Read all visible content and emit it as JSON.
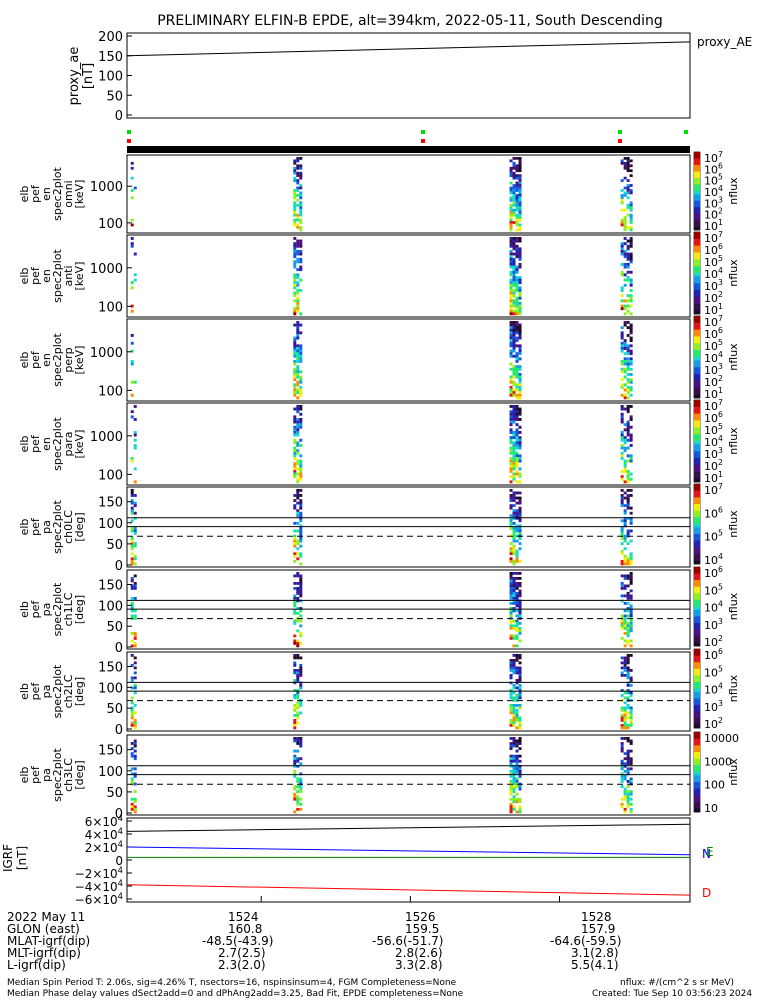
{
  "title": "PRELIMINARY ELFIN-B EPDE, alt=394km, 2022-05-11, South Descending",
  "ae_panel": {
    "ylabel": "proxy_ae\n[nT]",
    "ticks": [
      "200",
      "150",
      "100",
      "50",
      "0"
    ],
    "legend": "proxy_AE"
  },
  "energy_panels": [
    {
      "ylabel": [
        "elb",
        "pef",
        "en",
        "spec2plot",
        "omni",
        "[keV]"
      ],
      "ticks": [
        "1000",
        "100"
      ]
    },
    {
      "ylabel": [
        "elb",
        "pef",
        "en",
        "spec2plot",
        "anti",
        "[keV]"
      ],
      "ticks": [
        "1000",
        "100"
      ]
    },
    {
      "ylabel": [
        "elb",
        "pef",
        "en",
        "spec2plot",
        "perp",
        "[keV]"
      ],
      "ticks": [
        "1000",
        "100"
      ]
    },
    {
      "ylabel": [
        "elb",
        "pef",
        "en",
        "spec2plot",
        "para",
        "[keV]"
      ],
      "ticks": [
        "1000",
        "100"
      ]
    }
  ],
  "pa_panels": [
    {
      "ylabel": [
        "elb",
        "pef",
        "pa",
        "spec2plot",
        "ch0LC",
        "[deg]"
      ],
      "ticks": [
        "150",
        "100",
        "50",
        "0"
      ]
    },
    {
      "ylabel": [
        "elb",
        "pef",
        "pa",
        "spec2plot",
        "ch1LC",
        "[deg]"
      ],
      "ticks": [
        "150",
        "100",
        "50",
        "0"
      ]
    },
    {
      "ylabel": [
        "elb",
        "pef",
        "pa",
        "spec2plot",
        "ch2LC",
        "[deg]"
      ],
      "ticks": [
        "150",
        "100",
        "50",
        "0"
      ]
    },
    {
      "ylabel": [
        "elb",
        "pef",
        "pa",
        "spec2plot",
        "ch3LC",
        "[deg]"
      ],
      "ticks": [
        "150",
        "100",
        "50",
        "0"
      ]
    }
  ],
  "colorbars": [
    {
      "ticks": [
        "10^7",
        "10^6",
        "10^5",
        "10^4",
        "10^3",
        "10^2",
        "10^1"
      ],
      "label": "nflux"
    },
    {
      "ticks": [
        "10^7",
        "10^6",
        "10^5",
        "10^4",
        "10^3",
        "10^2",
        "10^1"
      ],
      "label": "nflux"
    },
    {
      "ticks": [
        "10^7",
        "10^6",
        "10^5",
        "10^4",
        "10^3",
        "10^2",
        "10^1"
      ],
      "label": "nflux"
    },
    {
      "ticks": [
        "10^7",
        "10^6",
        "10^5",
        "10^4",
        "10^3",
        "10^2",
        "10^1"
      ],
      "label": "nflux"
    },
    {
      "ticks": [
        "10^7",
        "10^6",
        "10^5",
        "10^4"
      ],
      "label": "nflux"
    },
    {
      "ticks": [
        "10^6",
        "10^5",
        "10^4",
        "10^3",
        "10^2"
      ],
      "label": "nflux"
    },
    {
      "ticks": [
        "10^6",
        "10^5",
        "10^4",
        "10^3",
        "10^2"
      ],
      "label": "nflux"
    },
    {
      "ticks": [
        "10000",
        "1000",
        "100",
        "10"
      ],
      "label": "nflux"
    }
  ],
  "igrf_panel": {
    "ylabel": "IGRF\n[nT]",
    "ticks": [
      "6×10^4",
      "4×10^4",
      "2×10^4",
      "0",
      "−2×10^4",
      "−4×10^4",
      "−6×10^4"
    ],
    "legend": [
      "N",
      "E",
      "D"
    ]
  },
  "footer": {
    "date_label": "2022 May 11",
    "times": [
      "1524",
      "1526",
      "1528"
    ],
    "rows": [
      {
        "label": "GLON (east)",
        "values": [
          "160.8",
          "159.5",
          "157.9"
        ]
      },
      {
        "label": "MLAT-igrf(dip)",
        "values": [
          "-48.5(-43.9)",
          "-56.6(-51.7)",
          "-64.6(-59.5)"
        ]
      },
      {
        "label": "MLT-igrf(dip)",
        "values": [
          "2.7(2.5)",
          "2.8(2.6)",
          "3.1(2.8)"
        ]
      },
      {
        "label": "L-igrf(dip)",
        "values": [
          "2.3(2.0)",
          "3.3(2.8)",
          "5.5(4.1)"
        ]
      }
    ],
    "note1": "Median Spin Period T: 2.06s, sig=4.26% T, nsectors=16, nspinsinsum=4, FGM Completeness=None",
    "note2": "Median Phase delay values dSect2add=0 and dPhAng2add=3.25, Bad Fit, EPDE completeness=None",
    "units": "nflux: #/(cm^2 s sr MeV)",
    "created": "Created: Tue Sep 10 03:56:23 2024"
  },
  "chart_data": {
    "type": "heatmap",
    "title": "PRELIMINARY ELFIN-B EPDE, alt=394km, 2022-05-11, South Descending",
    "x_ticks": [
      "1524",
      "1526",
      "1528"
    ],
    "ae": {
      "name": "proxy_AE",
      "start": 150,
      "end": 185,
      "ylim": [
        0,
        200
      ]
    },
    "pa_reference_lines_deg": [
      112,
      91,
      68
    ],
    "igrf": {
      "N": [
        20000,
        8000
      ],
      "E": [
        4000,
        4000
      ],
      "D": [
        -38000,
        -54000
      ],
      "ylim": [
        -60000,
        60000
      ]
    },
    "science_zones_minutes": [
      1524.4,
      1527.35,
      1528.9
    ]
  },
  "colors": {
    "n": "#0000ff",
    "e": "#008000",
    "d": "#ff0000"
  }
}
